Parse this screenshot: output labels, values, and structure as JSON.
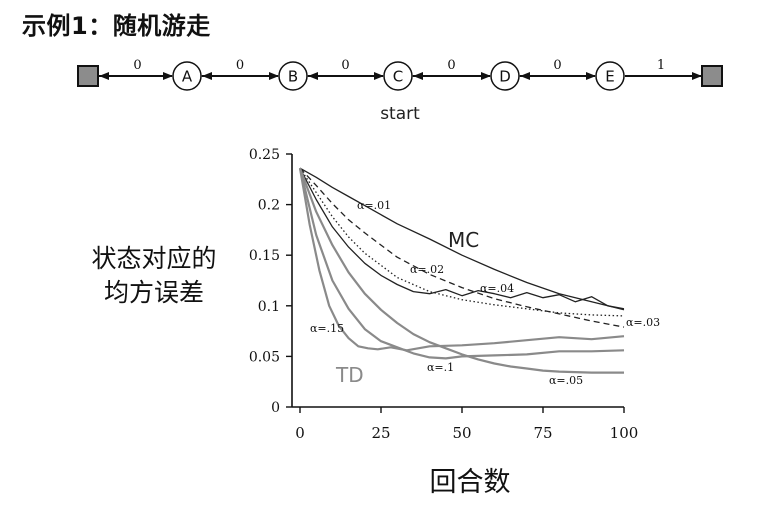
{
  "title": "示例1：随机游走",
  "random_walk": {
    "states": [
      "A",
      "B",
      "C",
      "D",
      "E"
    ],
    "edge_rewards": [
      "0",
      "0",
      "0",
      "0",
      "0",
      "1"
    ],
    "start_label": "start"
  },
  "chart_data": {
    "type": "line",
    "xlabel": "回合数",
    "ylabel_lines": [
      "状态对应的",
      "均方误差"
    ],
    "xlim": [
      0,
      100
    ],
    "ylim": [
      0,
      0.25
    ],
    "x_ticks": [
      "0",
      "25",
      "50",
      "75",
      "100"
    ],
    "y_ticks": [
      "0",
      "0.05",
      "0.1",
      "0.15",
      "0.2",
      "0.25"
    ],
    "group_labels": {
      "mc": "MC",
      "td": "TD"
    },
    "colors": {
      "mc": "#222222",
      "td": "#8a8a8a"
    },
    "series": [
      {
        "name": "α=.01",
        "group": "mc",
        "dash": "solid",
        "x": [
          0,
          5,
          10,
          15,
          20,
          25,
          30,
          40,
          50,
          60,
          70,
          80,
          90,
          100
        ],
        "y": [
          0.236,
          0.227,
          0.217,
          0.208,
          0.199,
          0.19,
          0.181,
          0.166,
          0.15,
          0.136,
          0.123,
          0.112,
          0.104,
          0.096
        ]
      },
      {
        "name": "α=.02",
        "group": "mc",
        "dash": "dashed",
        "x": [
          0,
          5,
          10,
          15,
          20,
          25,
          30,
          40,
          50,
          60,
          70,
          80,
          90,
          100
        ],
        "y": [
          0.236,
          0.219,
          0.201,
          0.185,
          0.172,
          0.16,
          0.148,
          0.131,
          0.118,
          0.107,
          0.099,
          0.092,
          0.085,
          0.079
        ]
      },
      {
        "name": "α=.03",
        "group": "mc",
        "dash": "dotted",
        "x": [
          0,
          5,
          10,
          15,
          20,
          25,
          30,
          40,
          50,
          60,
          70,
          80,
          90,
          100
        ],
        "y": [
          0.236,
          0.212,
          0.188,
          0.168,
          0.152,
          0.14,
          0.128,
          0.114,
          0.106,
          0.101,
          0.097,
          0.093,
          0.091,
          0.09
        ]
      },
      {
        "name": "α=.04",
        "group": "mc",
        "dash": "solid",
        "x": [
          0,
          5,
          10,
          15,
          20,
          25,
          30,
          35,
          40,
          45,
          50,
          55,
          60,
          65,
          70,
          75,
          80,
          85,
          90,
          95,
          100
        ],
        "y": [
          0.236,
          0.205,
          0.178,
          0.158,
          0.142,
          0.13,
          0.121,
          0.114,
          0.112,
          0.116,
          0.11,
          0.115,
          0.112,
          0.108,
          0.113,
          0.108,
          0.111,
          0.104,
          0.109,
          0.1,
          0.097
        ]
      },
      {
        "name": "α=.15",
        "group": "td",
        "dash": "solid",
        "x": [
          0,
          3,
          6,
          9,
          12,
          15,
          18,
          21,
          24,
          28,
          33,
          40,
          50,
          60,
          70,
          80,
          90,
          100
        ],
        "y": [
          0.236,
          0.18,
          0.135,
          0.1,
          0.08,
          0.068,
          0.06,
          0.058,
          0.057,
          0.059,
          0.056,
          0.06,
          0.061,
          0.063,
          0.066,
          0.069,
          0.067,
          0.07
        ]
      },
      {
        "name": "α=.1",
        "group": "td",
        "dash": "solid",
        "x": [
          0,
          5,
          10,
          15,
          20,
          25,
          30,
          35,
          40,
          45,
          50,
          60,
          70,
          80,
          90,
          100
        ],
        "y": [
          0.236,
          0.17,
          0.125,
          0.097,
          0.077,
          0.065,
          0.059,
          0.053,
          0.049,
          0.048,
          0.05,
          0.051,
          0.052,
          0.055,
          0.055,
          0.056
        ]
      },
      {
        "name": "α=.05",
        "group": "td",
        "dash": "solid",
        "x": [
          0,
          5,
          10,
          15,
          20,
          25,
          30,
          35,
          40,
          45,
          50,
          55,
          60,
          65,
          70,
          75,
          80,
          90,
          100
        ],
        "y": [
          0.236,
          0.193,
          0.16,
          0.133,
          0.112,
          0.096,
          0.083,
          0.072,
          0.064,
          0.058,
          0.052,
          0.047,
          0.043,
          0.04,
          0.038,
          0.036,
          0.035,
          0.034,
          0.034
        ]
      }
    ]
  }
}
